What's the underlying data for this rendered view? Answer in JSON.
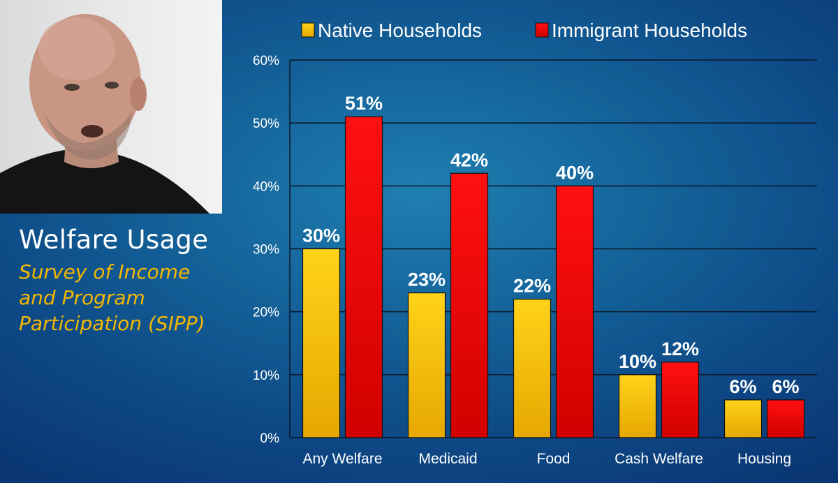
{
  "panel": {
    "title": "Welfare Usage",
    "subtitle": "Survey of Income and Program Participation (SIPP)"
  },
  "colors": {
    "native": "#f7c800",
    "immigrant": "#e60000",
    "gridline": "#0b1626",
    "text": "#ffffff"
  },
  "chart_data": {
    "type": "bar",
    "categories": [
      "Any Welfare",
      "Medicaid",
      "Food",
      "Cash Welfare",
      "Housing"
    ],
    "series": [
      {
        "name": "Native Households",
        "values": [
          30,
          23,
          22,
          10,
          6
        ],
        "labels": [
          "30%",
          "23%",
          "22%",
          "10%",
          "6%"
        ]
      },
      {
        "name": "Immigrant Households",
        "values": [
          51,
          42,
          40,
          12,
          6
        ],
        "labels": [
          "51%",
          "42%",
          "40%",
          "12%",
          "6%"
        ]
      }
    ],
    "yticks": [
      "0%",
      "10%",
      "20%",
      "30%",
      "40%",
      "50%",
      "60%"
    ],
    "ylim": [
      0,
      60
    ],
    "grid": true,
    "legend": "top",
    "title": "",
    "xlabel": "",
    "ylabel": ""
  }
}
